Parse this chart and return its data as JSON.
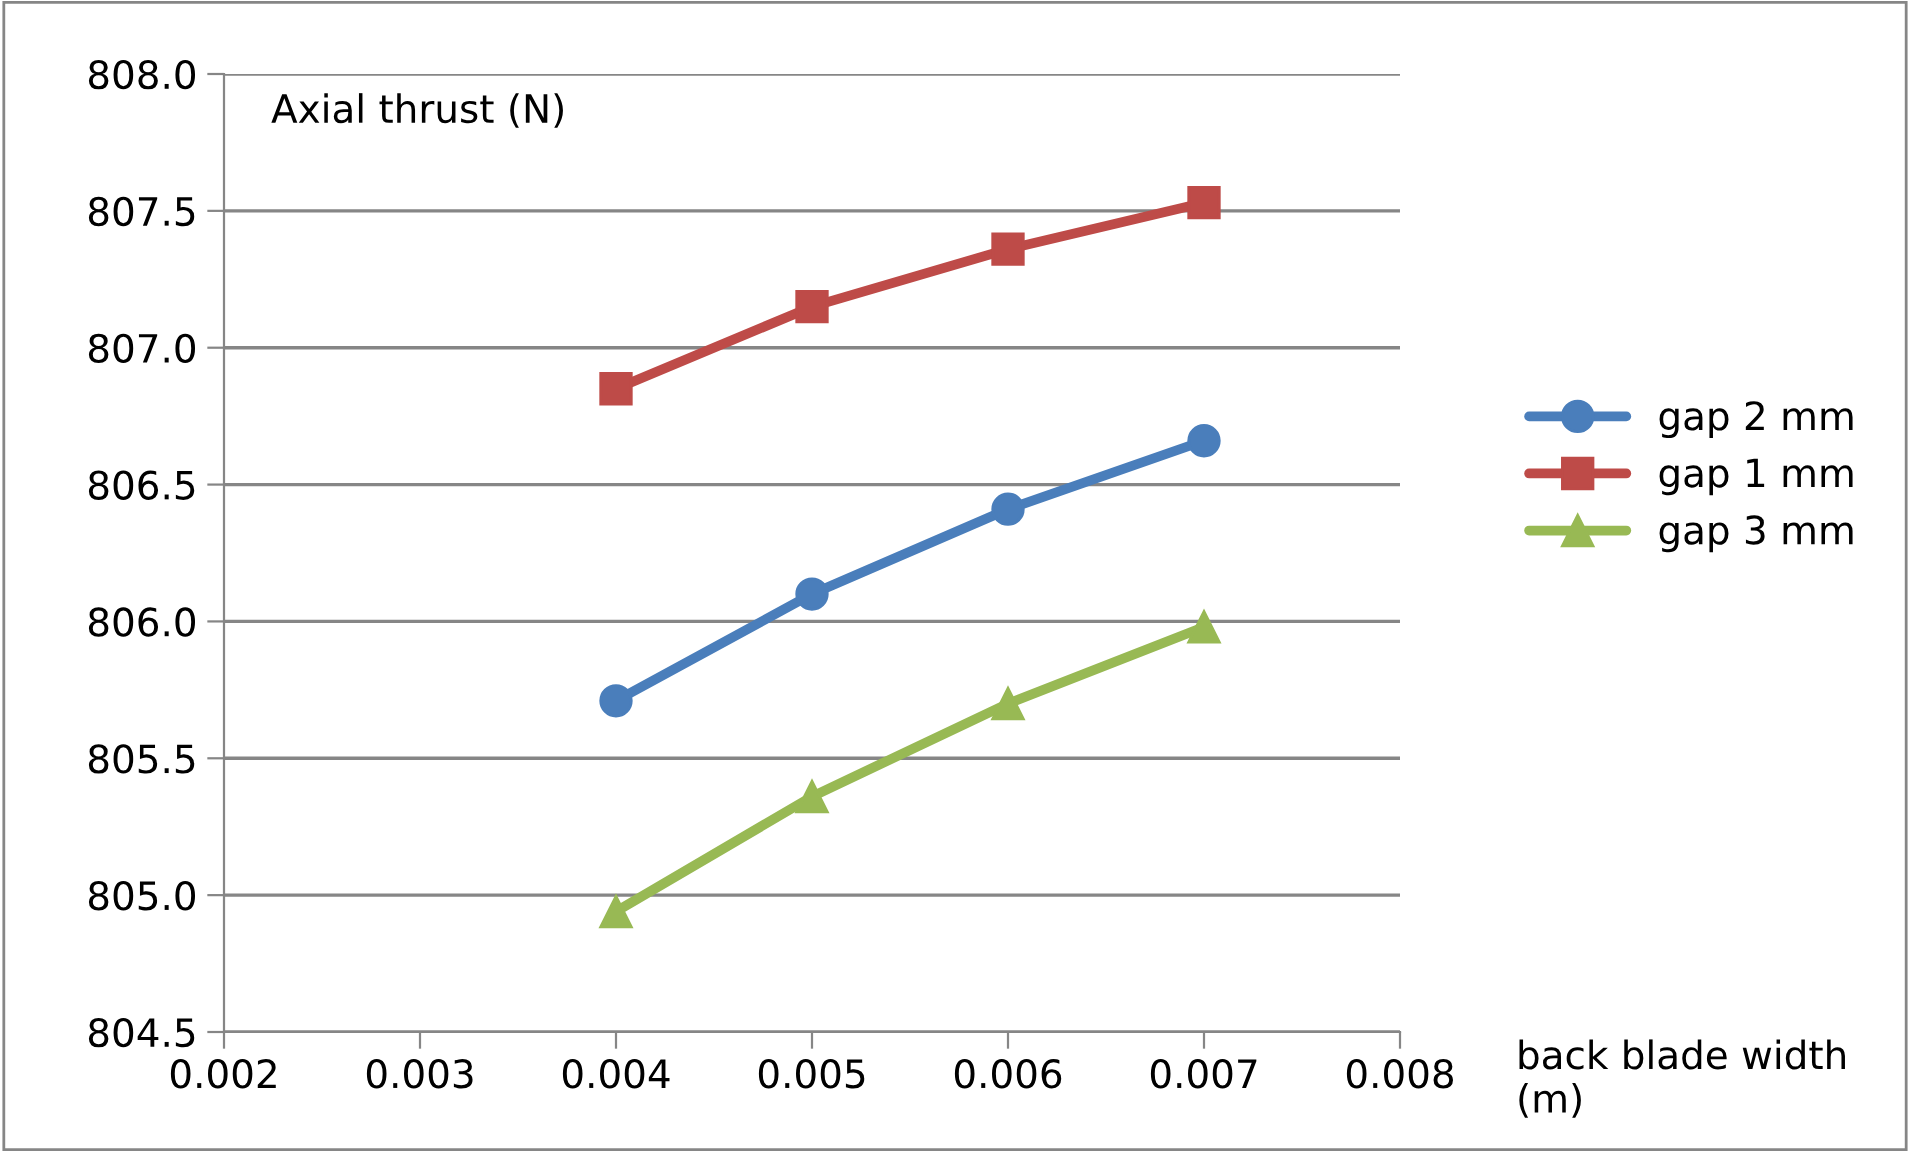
{
  "chart_data": {
    "type": "line",
    "ylabel": "Axial thrust (N)",
    "xlabel": "back blade width (m)",
    "x": [
      0.004,
      0.005,
      0.006,
      0.007
    ],
    "series": [
      {
        "name": "gap 2 mm",
        "color": "#4a7ebb",
        "marker": "circle",
        "values": [
          805.71,
          806.1,
          806.41,
          806.66
        ]
      },
      {
        "name": "gap 1 mm",
        "color": "#be4b48",
        "marker": "square",
        "values": [
          806.85,
          807.15,
          807.36,
          807.53
        ]
      },
      {
        "name": "gap 3 mm",
        "color": "#98b954",
        "marker": "triangle",
        "values": [
          804.94,
          805.36,
          805.7,
          805.98
        ]
      }
    ],
    "xlim": [
      0.002,
      0.008
    ],
    "xticks": [
      {
        "value": 0.002,
        "label": "0.002"
      },
      {
        "value": 0.003,
        "label": "0.003"
      },
      {
        "value": 0.004,
        "label": "0.004"
      },
      {
        "value": 0.005,
        "label": "0.005"
      },
      {
        "value": 0.006,
        "label": "0.006"
      },
      {
        "value": 0.007,
        "label": "0.007"
      },
      {
        "value": 0.008,
        "label": "0.008"
      }
    ],
    "ylim": [
      804.5,
      808.0
    ],
    "yticks": [
      {
        "value": 804.5,
        "label": "804.5"
      },
      {
        "value": 805.0,
        "label": "805.0"
      },
      {
        "value": 805.5,
        "label": "805.5"
      },
      {
        "value": 806.0,
        "label": "806.0"
      },
      {
        "value": 806.5,
        "label": "806.5"
      },
      {
        "value": 807.0,
        "label": "807.0"
      },
      {
        "value": 807.5,
        "label": "807.5"
      },
      {
        "value": 808.0,
        "label": "808.0"
      }
    ],
    "grid": "y",
    "legend": "right",
    "line_style": "solid"
  }
}
